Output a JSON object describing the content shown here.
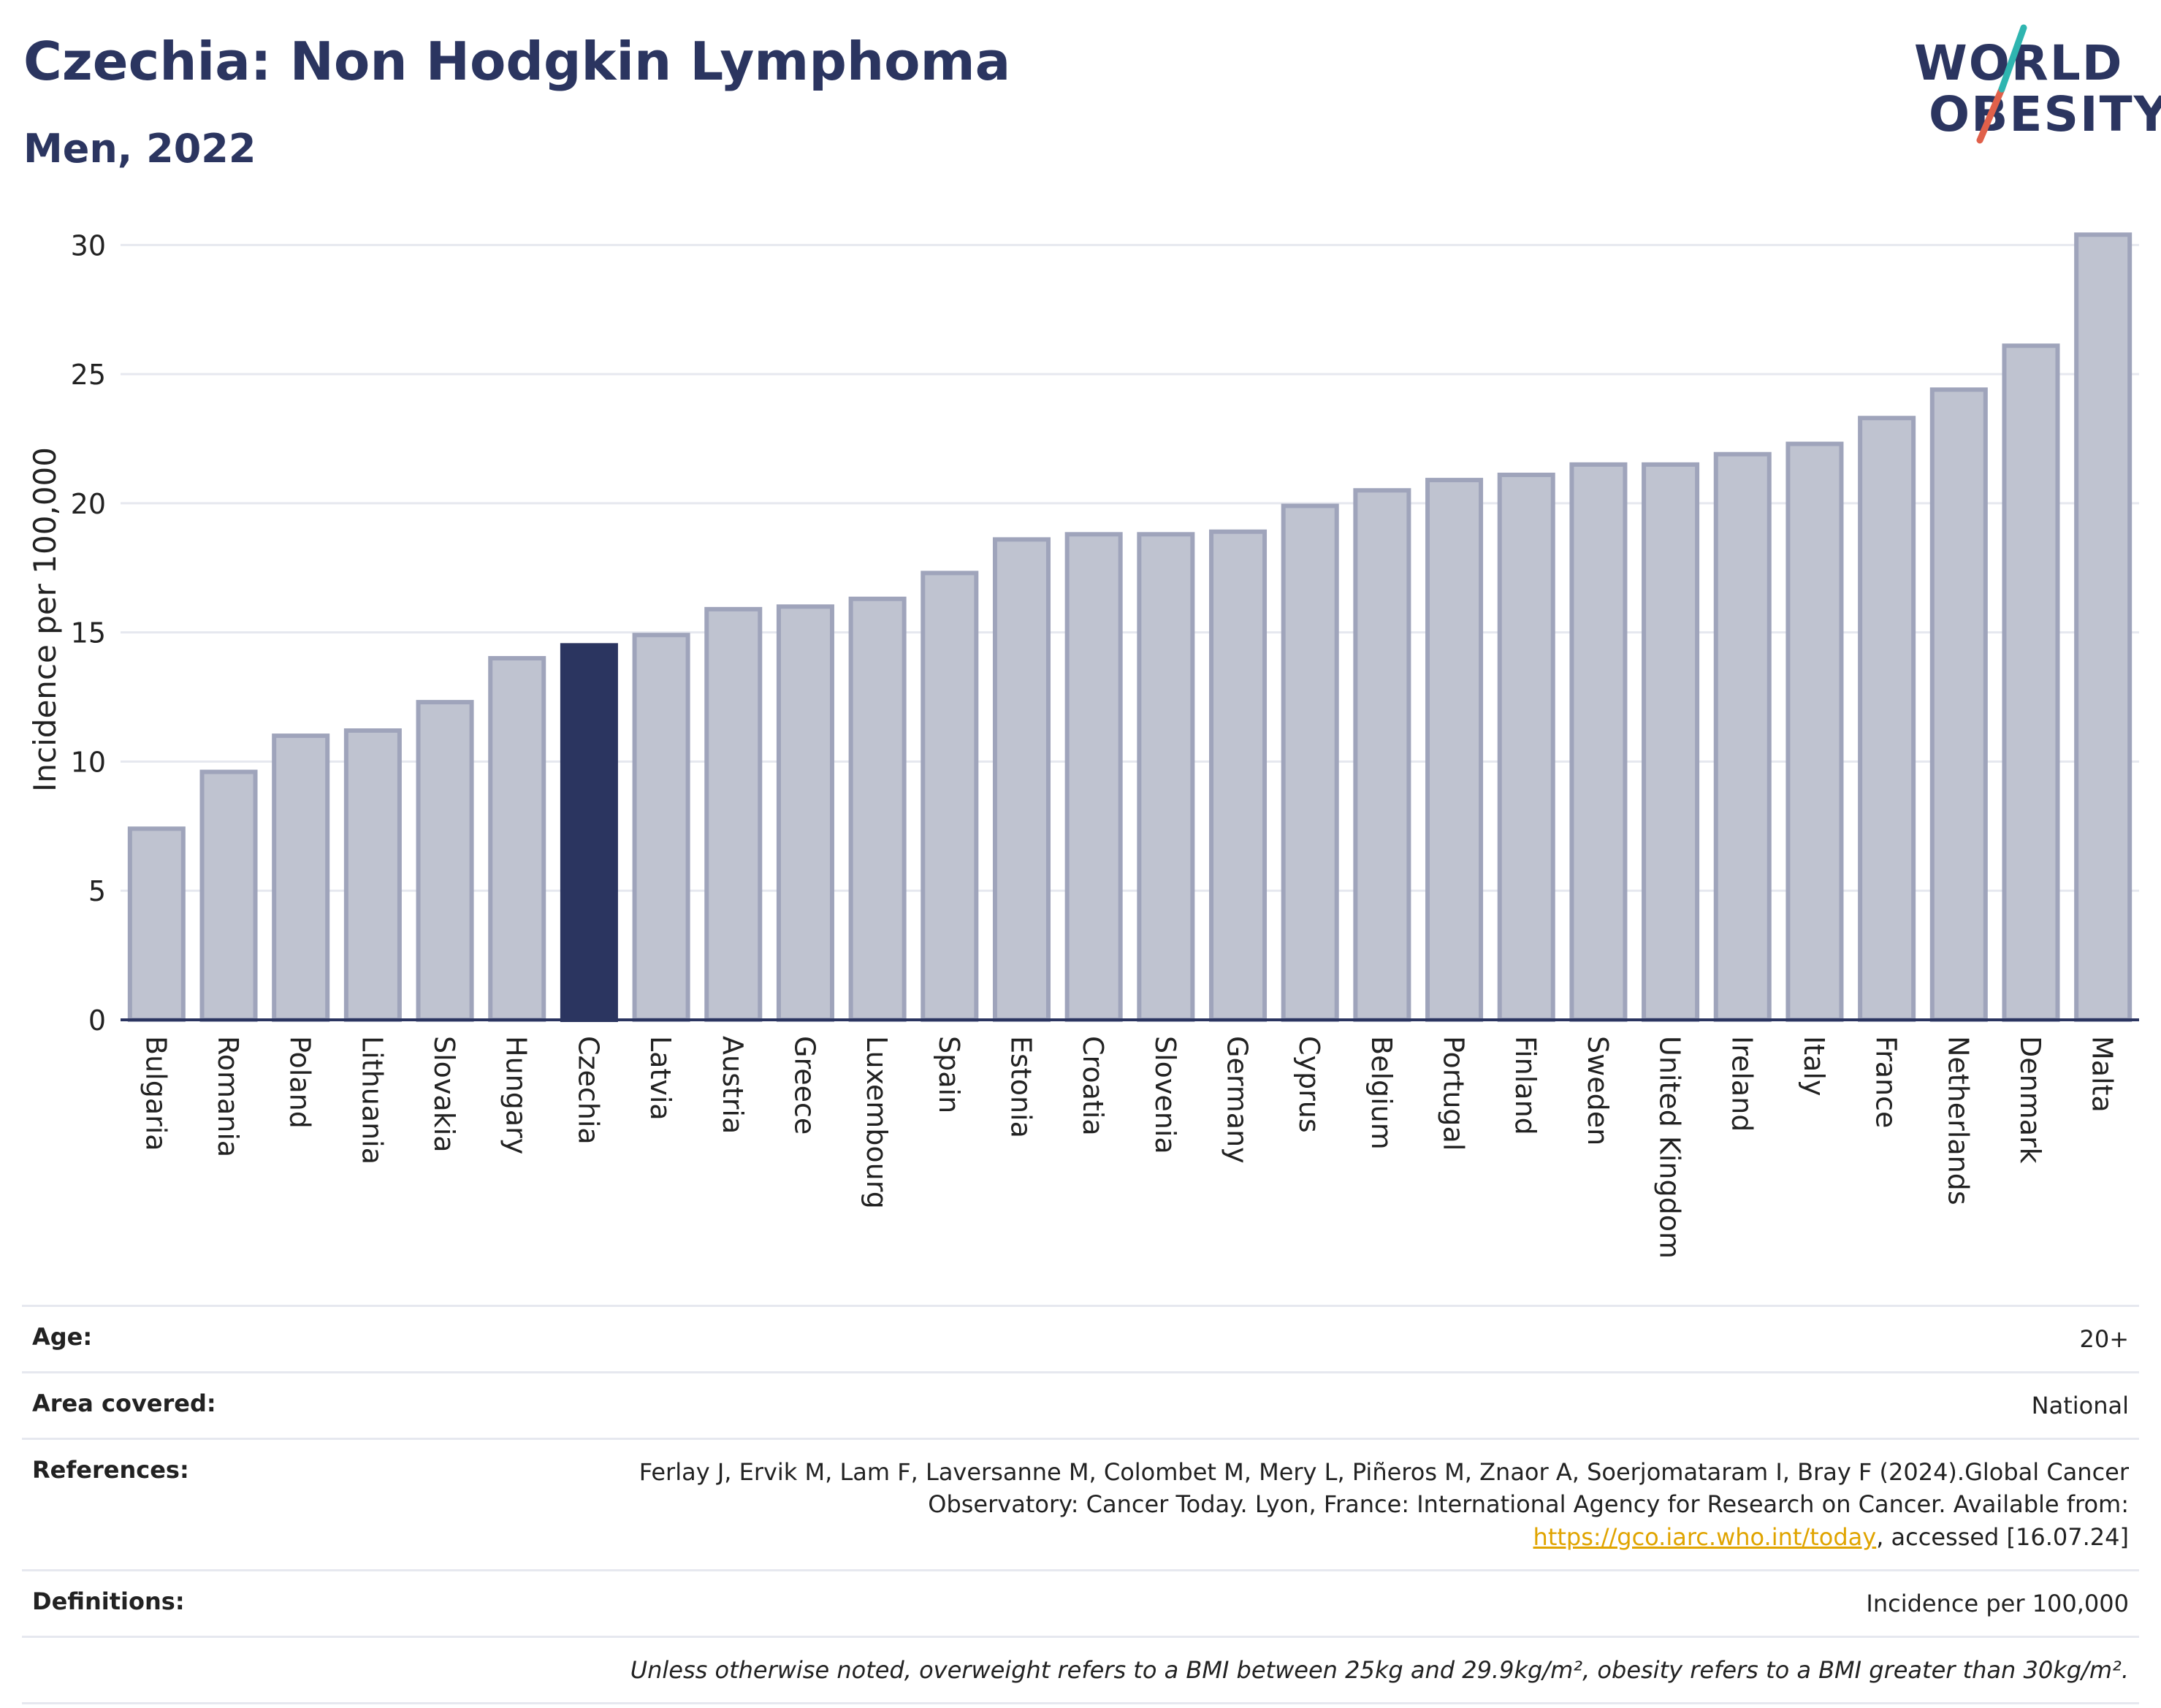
{
  "header": {
    "title": "Czechia: Non Hodgkin Lymphoma",
    "subtitle": "Men, 2022"
  },
  "logo": {
    "line1": "WORLD",
    "line2": "OBESITY",
    "accent_colors": [
      "#2fb5b0",
      "#e0604a"
    ]
  },
  "colors": {
    "highlight": "#2b3560",
    "bar": "#bfc3d0",
    "bar_border": "#9fa4bb",
    "text": "#2b3560"
  },
  "chart_data": {
    "type": "bar",
    "title": "Czechia: Non Hodgkin Lymphoma",
    "subtitle": "Men, 2022",
    "ylabel": "Incidence per 100,000",
    "xlabel": "",
    "ylim": [
      0,
      31
    ],
    "yticks": [
      0,
      5,
      10,
      15,
      20,
      25,
      30
    ],
    "grid": true,
    "highlight": "Czechia",
    "categories": [
      "Bulgaria",
      "Romania",
      "Poland",
      "Lithuania",
      "Slovakia",
      "Hungary",
      "Czechia",
      "Latvia",
      "Austria",
      "Greece",
      "Luxembourg",
      "Spain",
      "Estonia",
      "Croatia",
      "Slovenia",
      "Germany",
      "Cyprus",
      "Belgium",
      "Portugal",
      "Finland",
      "Sweden",
      "United Kingdom",
      "Ireland",
      "Italy",
      "France",
      "Netherlands",
      "Denmark",
      "Malta"
    ],
    "values": [
      7.4,
      9.6,
      11.0,
      11.2,
      12.3,
      14.0,
      14.5,
      14.9,
      15.9,
      16.0,
      16.3,
      17.3,
      18.6,
      18.8,
      18.8,
      18.9,
      19.9,
      20.5,
      20.9,
      21.1,
      21.5,
      21.5,
      21.9,
      22.3,
      23.3,
      24.4,
      26.1,
      30.4
    ]
  },
  "meta": {
    "age_label": "Age:",
    "age_value": "20+",
    "area_label": "Area covered:",
    "area_value": "National",
    "references_label": "References:",
    "references_text": "Ferlay J, Ervik M, Lam F, Laversanne M, Colombet M, Mery L, Piñeros M, Znaor A, Soerjomataram I, Bray F (2024).Global Cancer Observatory: Cancer Today. Lyon, France: International Agency for Research on Cancer. Available from: ",
    "references_link": "https://gco.iarc.who.int/today",
    "references_tail": ", accessed [16.07.24]",
    "definitions_label": "Definitions:",
    "definitions_value": "Incidence per 100,000",
    "note": "Unless otherwise noted, overweight refers to a BMI between 25kg and 29.9kg/m², obesity refers to a BMI greater than 30kg/m²."
  }
}
